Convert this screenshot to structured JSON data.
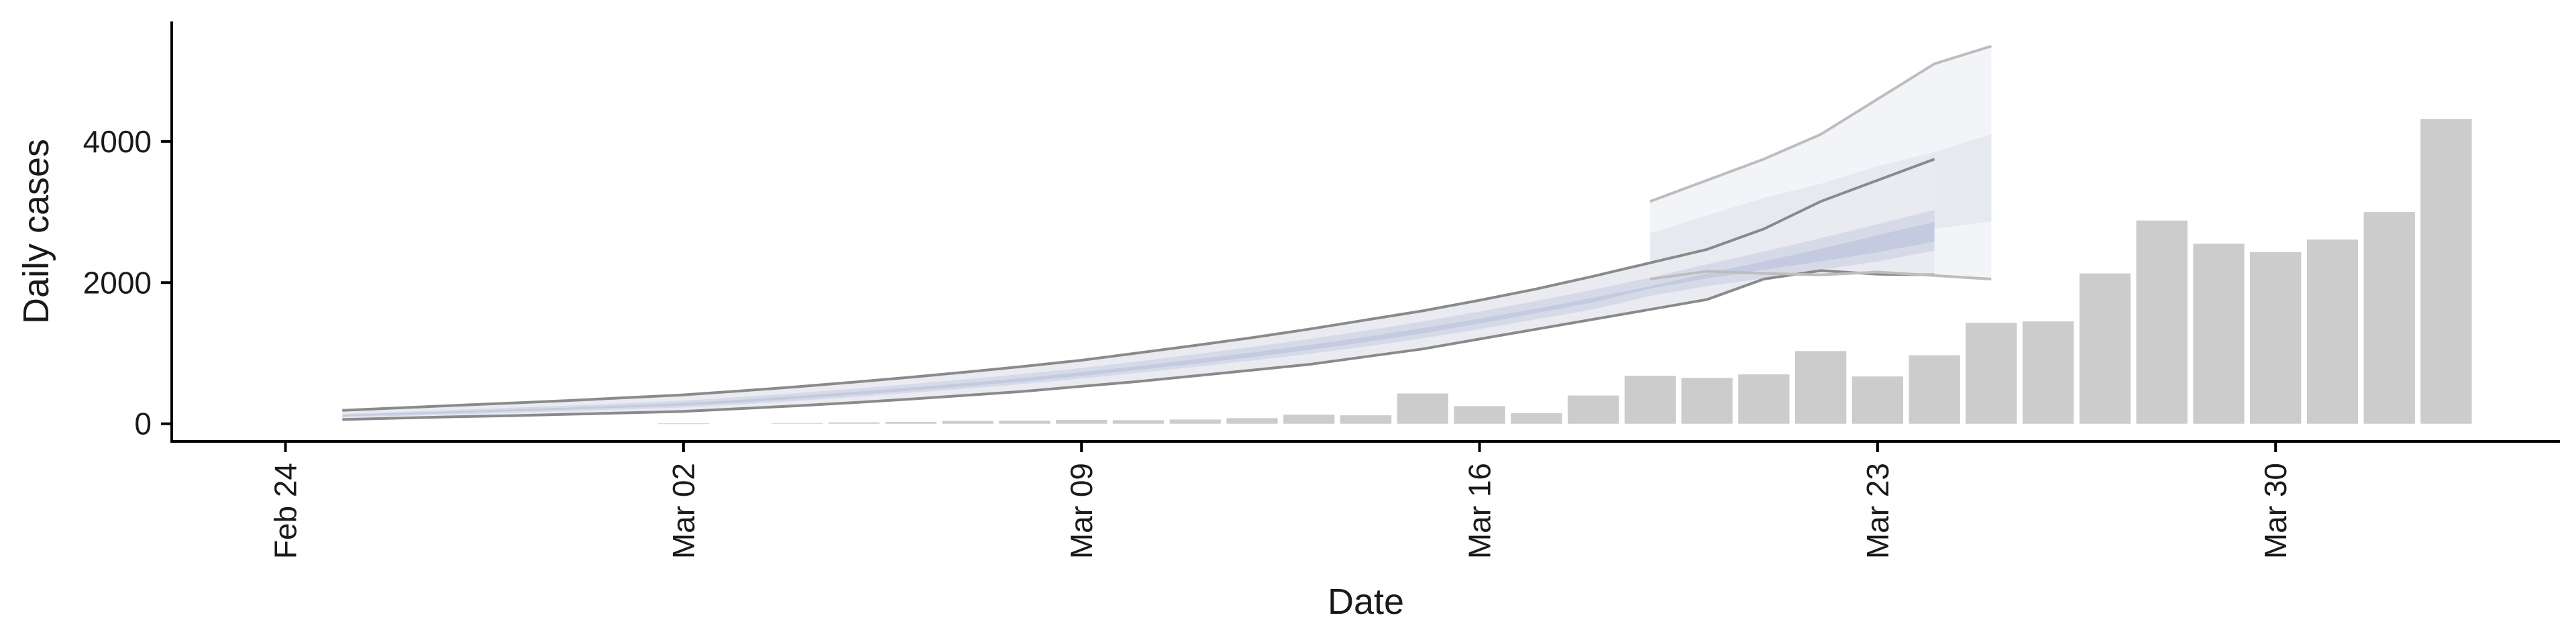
{
  "chart_data": {
    "type": "bar",
    "title": "",
    "xlabel": "Date",
    "ylabel": "Daily cases",
    "ylim": [
      -250,
      5700
    ],
    "yticks": [
      0,
      2000,
      4000
    ],
    "ytick_labels": [
      "0",
      "2000",
      "4000"
    ],
    "xticks": [
      "2020-02-24",
      "2020-03-02",
      "2020-03-09",
      "2020-03-16",
      "2020-03-23",
      "2020-03-30"
    ],
    "xtick_labels": [
      "Feb 24",
      "Mar 02",
      "Mar 09",
      "Mar 16",
      "Mar 23",
      "Mar 30"
    ],
    "xlim": [
      "2020-02-22",
      "2020-04-04"
    ],
    "grid": false,
    "legend": "none",
    "bars": {
      "color": "#cccccc",
      "dates": [
        "2020-02-24",
        "2020-02-25",
        "2020-02-26",
        "2020-02-27",
        "2020-02-28",
        "2020-02-29",
        "2020-03-01",
        "2020-03-02",
        "2020-03-03",
        "2020-03-04",
        "2020-03-05",
        "2020-03-06",
        "2020-03-07",
        "2020-03-08",
        "2020-03-09",
        "2020-03-10",
        "2020-03-11",
        "2020-03-12",
        "2020-03-13",
        "2020-03-14",
        "2020-03-15",
        "2020-03-16",
        "2020-03-17",
        "2020-03-18",
        "2020-03-19",
        "2020-03-20",
        "2020-03-21",
        "2020-03-22",
        "2020-03-23",
        "2020-03-24",
        "2020-03-25",
        "2020-03-26",
        "2020-03-27",
        "2020-03-28",
        "2020-03-29",
        "2020-03-30",
        "2020-03-31",
        "2020-04-01",
        "2020-04-02"
      ],
      "values": [
        0,
        0,
        0,
        0,
        0,
        0,
        0,
        5,
        0,
        10,
        20,
        25,
        40,
        45,
        55,
        50,
        60,
        80,
        130,
        120,
        430,
        250,
        150,
        400,
        680,
        650,
        700,
        1030,
        670,
        970,
        1430,
        1450,
        2130,
        2880,
        2550,
        2430,
        2610,
        3000,
        4320
      ]
    },
    "band_dates": [
      "2020-02-25",
      "2020-02-26",
      "2020-02-27",
      "2020-02-28",
      "2020-02-29",
      "2020-03-01",
      "2020-03-02",
      "2020-03-03",
      "2020-03-04",
      "2020-03-05",
      "2020-03-06",
      "2020-03-07",
      "2020-03-08",
      "2020-03-09",
      "2020-03-10",
      "2020-03-11",
      "2020-03-12",
      "2020-03-13",
      "2020-03-14",
      "2020-03-15",
      "2020-03-16",
      "2020-03-17",
      "2020-03-18",
      "2020-03-19",
      "2020-03-20",
      "2020-03-21",
      "2020-03-22",
      "2020-03-23",
      "2020-03-24"
    ],
    "bands": {
      "colors": {
        "outer": "#e9ebf1",
        "middle": "#d6dae8",
        "inner": "#c4cadf",
        "outer_line": "#8a8a8a"
      },
      "outer_lower": [
        60,
        80,
        100,
        115,
        135,
        155,
        175,
        215,
        255,
        300,
        350,
        405,
        460,
        530,
        600,
        680,
        760,
        840,
        950,
        1060,
        1200,
        1340,
        1480,
        1620,
        1760,
        2050,
        2170,
        2120,
        2110
      ],
      "outer_upper": [
        190,
        225,
        260,
        295,
        330,
        370,
        410,
        465,
        525,
        590,
        660,
        735,
        815,
        900,
        1005,
        1110,
        1220,
        1340,
        1470,
        1600,
        1750,
        1910,
        2090,
        2280,
        2470,
        2760,
        3150,
        3450,
        3750
      ],
      "middle_lower": [
        90,
        112,
        135,
        158,
        180,
        205,
        232,
        275,
        325,
        380,
        438,
        500,
        565,
        640,
        720,
        805,
        895,
        990,
        1095,
        1210,
        1340,
        1480,
        1620,
        1810,
        1950,
        2060,
        2180,
        2300,
        2450
      ],
      "middle_upper": [
        140,
        168,
        198,
        228,
        258,
        292,
        328,
        378,
        434,
        496,
        562,
        633,
        707,
        790,
        885,
        985,
        1090,
        1200,
        1320,
        1450,
        1590,
        1740,
        1900,
        2070,
        2260,
        2440,
        2630,
        2830,
        3030
      ],
      "inner_lower": [
        105,
        128,
        153,
        178,
        202,
        230,
        258,
        302,
        354,
        410,
        470,
        534,
        600,
        678,
        762,
        850,
        945,
        1045,
        1158,
        1280,
        1420,
        1570,
        1720,
        1915,
        2060,
        2180,
        2300,
        2430,
        2580
      ],
      "inner_upper": [
        125,
        150,
        177,
        204,
        230,
        261,
        294,
        340,
        394,
        452,
        514,
        580,
        650,
        730,
        818,
        912,
        1010,
        1115,
        1230,
        1355,
        1490,
        1630,
        1785,
        1950,
        2130,
        2300,
        2480,
        2670,
        2860
      ]
    },
    "forecast": {
      "dates": [
        "2020-03-19",
        "2020-03-20",
        "2020-03-21",
        "2020-03-22",
        "2020-03-23",
        "2020-03-24",
        "2020-03-25"
      ],
      "outer_lower": [
        2050,
        2160,
        2130,
        2110,
        2150,
        2100,
        2050
      ],
      "outer_upper": [
        3150,
        3450,
        3750,
        4100,
        4600,
        5100,
        5350
      ],
      "middle_lower": [
        2260,
        2400,
        2520,
        2620,
        2700,
        2760,
        2870
      ],
      "middle_upper": [
        2700,
        2950,
        3200,
        3400,
        3650,
        3850,
        4100
      ]
    }
  }
}
